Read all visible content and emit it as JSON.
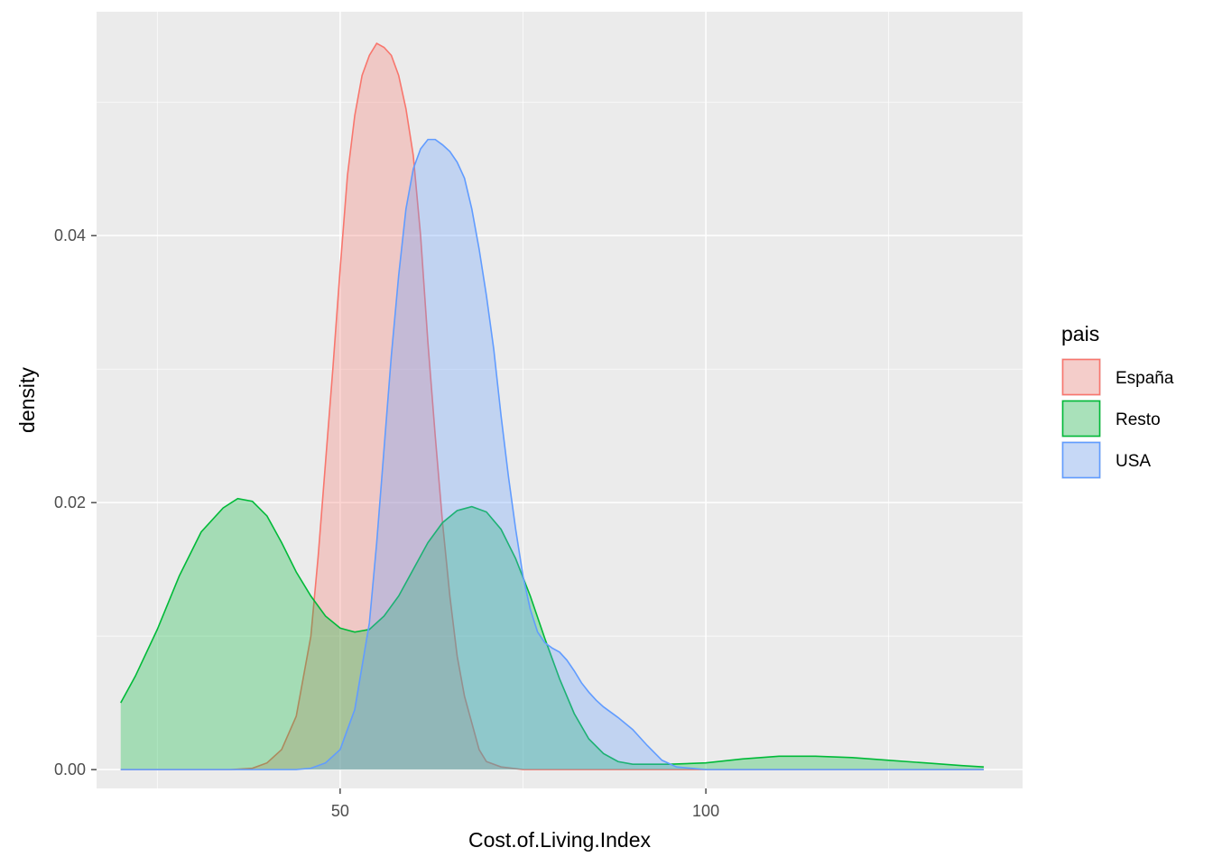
{
  "chart_data": {
    "type": "area",
    "subtype": "density",
    "title": "",
    "xlabel": "Cost.of.Living.Index",
    "ylabel": "density",
    "xlim": [
      16.7,
      143.3
    ],
    "ylim": [
      -0.00141,
      0.05677
    ],
    "x_ticks": [
      50,
      100
    ],
    "x_tick_labels": [
      "50",
      "100"
    ],
    "x_minor_ticks": [
      25,
      75,
      125
    ],
    "y_ticks": [
      0.0,
      0.02,
      0.04
    ],
    "y_tick_labels": [
      "0.00",
      "0.02",
      "0.04"
    ],
    "y_minor_ticks": [
      0.01,
      0.03,
      0.05
    ],
    "grid": true,
    "background": "#ebebeb",
    "legend": {
      "title": "pais",
      "position": "right"
    },
    "series": [
      {
        "name": "España",
        "color": "#f8766d",
        "points": [
          [
            20,
            0
          ],
          [
            35,
            0
          ],
          [
            38,
            0.0001
          ],
          [
            40,
            0.0005
          ],
          [
            42,
            0.0015
          ],
          [
            44,
            0.004
          ],
          [
            46,
            0.01
          ],
          [
            47,
            0.016
          ],
          [
            48,
            0.023
          ],
          [
            49,
            0.03
          ],
          [
            50,
            0.0375
          ],
          [
            51,
            0.0445
          ],
          [
            52,
            0.049
          ],
          [
            53,
            0.052
          ],
          [
            54,
            0.0535
          ],
          [
            55,
            0.0544
          ],
          [
            56,
            0.0541
          ],
          [
            57,
            0.0535
          ],
          [
            58,
            0.052
          ],
          [
            59,
            0.0495
          ],
          [
            60,
            0.046
          ],
          [
            61,
            0.04
          ],
          [
            62,
            0.032
          ],
          [
            63,
            0.025
          ],
          [
            64,
            0.0185
          ],
          [
            65,
            0.013
          ],
          [
            66,
            0.0085
          ],
          [
            67,
            0.0055
          ],
          [
            68,
            0.0035
          ],
          [
            69,
            0.0015
          ],
          [
            70,
            0.0006
          ],
          [
            72,
            0.0002
          ],
          [
            75,
            0
          ],
          [
            138,
            0
          ]
        ]
      },
      {
        "name": "Resto",
        "color": "#00ba38",
        "points": [
          [
            20,
            0.005
          ],
          [
            22,
            0.007
          ],
          [
            25,
            0.0105
          ],
          [
            28,
            0.0145
          ],
          [
            31,
            0.0178
          ],
          [
            34,
            0.0196
          ],
          [
            36,
            0.0203
          ],
          [
            38,
            0.0201
          ],
          [
            40,
            0.019
          ],
          [
            42,
            0.017
          ],
          [
            44,
            0.0148
          ],
          [
            46,
            0.013
          ],
          [
            48,
            0.0115
          ],
          [
            50,
            0.0106
          ],
          [
            52,
            0.0103
          ],
          [
            54,
            0.0105
          ],
          [
            56,
            0.0115
          ],
          [
            58,
            0.013
          ],
          [
            60,
            0.015
          ],
          [
            62,
            0.017
          ],
          [
            64,
            0.0185
          ],
          [
            66,
            0.0194
          ],
          [
            68,
            0.0197
          ],
          [
            70,
            0.0193
          ],
          [
            72,
            0.018
          ],
          [
            74,
            0.0158
          ],
          [
            76,
            0.013
          ],
          [
            78,
            0.0098
          ],
          [
            80,
            0.0068
          ],
          [
            82,
            0.0042
          ],
          [
            84,
            0.0023
          ],
          [
            86,
            0.0012
          ],
          [
            88,
            0.0006
          ],
          [
            90,
            0.0004
          ],
          [
            95,
            0.0004
          ],
          [
            100,
            0.0005
          ],
          [
            105,
            0.0008
          ],
          [
            110,
            0.001
          ],
          [
            115,
            0.001
          ],
          [
            120,
            0.0009
          ],
          [
            125,
            0.0007
          ],
          [
            130,
            0.0005
          ],
          [
            135,
            0.0003
          ],
          [
            138,
            0.0002
          ]
        ]
      },
      {
        "name": "USA",
        "color": "#619cff",
        "points": [
          [
            20,
            0
          ],
          [
            44,
            0
          ],
          [
            46,
            0.0001
          ],
          [
            48,
            0.0005
          ],
          [
            50,
            0.0015
          ],
          [
            52,
            0.0045
          ],
          [
            54,
            0.011
          ],
          [
            55,
            0.017
          ],
          [
            56,
            0.024
          ],
          [
            57,
            0.031
          ],
          [
            58,
            0.037
          ],
          [
            59,
            0.042
          ],
          [
            60,
            0.045
          ],
          [
            61,
            0.0465
          ],
          [
            62,
            0.0472
          ],
          [
            63,
            0.0472
          ],
          [
            64,
            0.0468
          ],
          [
            65,
            0.0463
          ],
          [
            66,
            0.0455
          ],
          [
            67,
            0.0443
          ],
          [
            68,
            0.042
          ],
          [
            69,
            0.039
          ],
          [
            70,
            0.0355
          ],
          [
            71,
            0.0315
          ],
          [
            72,
            0.0265
          ],
          [
            73,
            0.022
          ],
          [
            74,
            0.018
          ],
          [
            75,
            0.0145
          ],
          [
            76,
            0.012
          ],
          [
            77,
            0.0103
          ],
          [
            78,
            0.0095
          ],
          [
            79,
            0.0091
          ],
          [
            80,
            0.0088
          ],
          [
            81,
            0.0082
          ],
          [
            82,
            0.0074
          ],
          [
            83,
            0.0065
          ],
          [
            84,
            0.0058
          ],
          [
            85,
            0.0052
          ],
          [
            86,
            0.0047
          ],
          [
            88,
            0.0039
          ],
          [
            90,
            0.003
          ],
          [
            92,
            0.0018
          ],
          [
            94,
            0.0007
          ],
          [
            96,
            0.0002
          ],
          [
            98,
            0.0001
          ],
          [
            100,
            0
          ],
          [
            138,
            0
          ]
        ]
      }
    ]
  }
}
